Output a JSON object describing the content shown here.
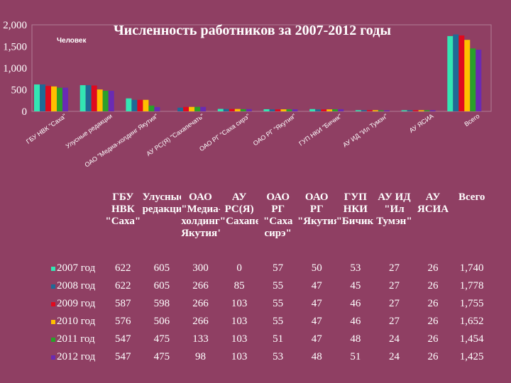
{
  "chart_data": {
    "type": "bar",
    "title": "Численность работников за 2007-2012 годы",
    "unit_label": "Человек",
    "y_ticks": [
      "0",
      "500",
      "1,000",
      "1,500",
      "2,000"
    ],
    "ylim": [
      0,
      2000
    ],
    "grid": false,
    "legend": "table",
    "x_axis_labels": [
      "ГБУ НВК \"Саха\"",
      "Улусные редакции",
      "ОАО \"Медиа-холдинг Якутия\"",
      "АУ РС(Я) \"Сахапечать\"",
      "ОАО РГ \"Саха сирэ\"",
      "ОАО РГ \"Якутия\"",
      "ГУП НКИ \"Бичик\"",
      "АУ ИД \"Ил Тумэн\"",
      "АУ ЯСИА",
      "Всего"
    ],
    "table_headers": [
      "ГБУ НВК \"Саха\"",
      "Улусные редакции",
      "ОАО \"Медиа-холдинг Якутия\"",
      "АУ РС(Я) \"Сахапечать\"",
      "ОАО РГ \"Саха сирэ\"",
      "ОАО РГ \"Якутия\"",
      "ГУП НКИ \"Бичик\"",
      "АУ ИД \"Ил Тумэн\"",
      "АУ ЯСИА",
      "Всего"
    ],
    "series": [
      {
        "name": "2007 год",
        "color": "#33e6b3",
        "values": [
          622,
          605,
          300,
          0,
          57,
          50,
          53,
          27,
          26,
          1740
        ],
        "labels": [
          "622",
          "605",
          "300",
          "0",
          "57",
          "50",
          "53",
          "27",
          "26",
          "1,740"
        ]
      },
      {
        "name": "2008 год",
        "color": "#1f6a96",
        "values": [
          622,
          605,
          266,
          85,
          55,
          47,
          45,
          27,
          26,
          1778
        ],
        "labels": [
          "622",
          "605",
          "266",
          "85",
          "55",
          "47",
          "45",
          "27",
          "26",
          "1,778"
        ]
      },
      {
        "name": "2009 год",
        "color": "#e00a1e",
        "values": [
          587,
          598,
          266,
          103,
          55,
          47,
          46,
          27,
          26,
          1755
        ],
        "labels": [
          "587",
          "598",
          "266",
          "103",
          "55",
          "47",
          "46",
          "27",
          "26",
          "1,755"
        ]
      },
      {
        "name": "2010 год",
        "color": "#ffbf00",
        "values": [
          576,
          506,
          266,
          103,
          55,
          47,
          46,
          27,
          26,
          1652
        ],
        "labels": [
          "576",
          "506",
          "266",
          "103",
          "55",
          "47",
          "46",
          "27",
          "26",
          "1,652"
        ]
      },
      {
        "name": "2011 год",
        "color": "#2aa02a",
        "values": [
          547,
          475,
          133,
          103,
          51,
          47,
          48,
          24,
          26,
          1454
        ],
        "labels": [
          "547",
          "475",
          "133",
          "103",
          "51",
          "47",
          "48",
          "24",
          "26",
          "1,454"
        ]
      },
      {
        "name": "2012 год",
        "color": "#6a2bb3",
        "values": [
          547,
          475,
          98,
          103,
          53,
          48,
          51,
          24,
          26,
          1425
        ],
        "labels": [
          "547",
          "475",
          "98",
          "103",
          "53",
          "48",
          "51",
          "24",
          "26",
          "1,425"
        ]
      }
    ]
  }
}
